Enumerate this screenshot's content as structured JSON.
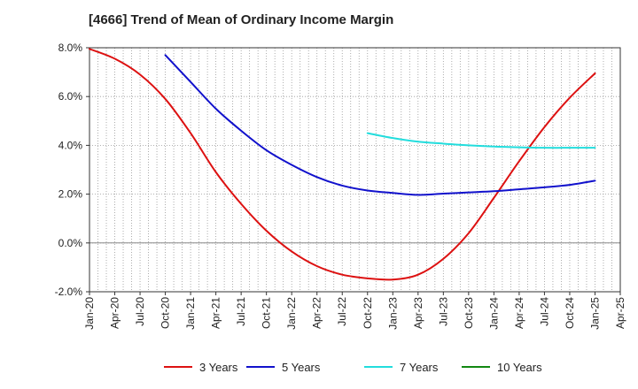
{
  "chart_data": {
    "type": "line",
    "title": "[4666]  Trend of Mean of Ordinary Income Margin",
    "xlabel": "",
    "ylabel": "",
    "x_range": [
      "2020-01",
      "2025-04"
    ],
    "ylim": [
      -2.0,
      8.0
    ],
    "y_ticks": [
      {
        "value": 8,
        "label": "8.0%"
      },
      {
        "value": 6,
        "label": "6.0%"
      },
      {
        "value": 4,
        "label": "4.0%"
      },
      {
        "value": 2,
        "label": "2.0%"
      },
      {
        "value": 0,
        "label": "0.0%"
      },
      {
        "value": -2,
        "label": "-2.0%"
      }
    ],
    "x_ticks": [
      {
        "date": "2020-01",
        "label": "Jan-20"
      },
      {
        "date": "2020-04",
        "label": "Apr-20"
      },
      {
        "date": "2020-07",
        "label": "Jul-20"
      },
      {
        "date": "2020-10",
        "label": "Oct-20"
      },
      {
        "date": "2021-01",
        "label": "Jan-21"
      },
      {
        "date": "2021-04",
        "label": "Apr-21"
      },
      {
        "date": "2021-07",
        "label": "Jul-21"
      },
      {
        "date": "2021-10",
        "label": "Oct-21"
      },
      {
        "date": "2022-01",
        "label": "Jan-22"
      },
      {
        "date": "2022-04",
        "label": "Apr-22"
      },
      {
        "date": "2022-07",
        "label": "Jul-22"
      },
      {
        "date": "2022-10",
        "label": "Oct-22"
      },
      {
        "date": "2023-01",
        "label": "Jan-23"
      },
      {
        "date": "2023-04",
        "label": "Apr-23"
      },
      {
        "date": "2023-07",
        "label": "Jul-23"
      },
      {
        "date": "2023-10",
        "label": "Oct-23"
      },
      {
        "date": "2024-01",
        "label": "Jan-24"
      },
      {
        "date": "2024-04",
        "label": "Apr-24"
      },
      {
        "date": "2024-07",
        "label": "Jul-24"
      },
      {
        "date": "2024-10",
        "label": "Oct-24"
      },
      {
        "date": "2025-01",
        "label": "Jan-25"
      },
      {
        "date": "2025-04",
        "label": "Apr-25"
      }
    ],
    "grid": true,
    "legend_position": "bottom",
    "series": [
      {
        "name": "3 Years",
        "color": "#dd1111",
        "points": [
          [
            "2020-01",
            7.95
          ],
          [
            "2020-04",
            7.55
          ],
          [
            "2020-07",
            6.9
          ],
          [
            "2020-10",
            5.9
          ],
          [
            "2021-01",
            4.5
          ],
          [
            "2021-04",
            2.9
          ],
          [
            "2021-07",
            1.6
          ],
          [
            "2021-10",
            0.5
          ],
          [
            "2022-01",
            -0.35
          ],
          [
            "2022-04",
            -0.95
          ],
          [
            "2022-07",
            -1.3
          ],
          [
            "2022-10",
            -1.45
          ],
          [
            "2023-01",
            -1.5
          ],
          [
            "2023-04",
            -1.3
          ],
          [
            "2023-07",
            -0.65
          ],
          [
            "2023-10",
            0.4
          ],
          [
            "2024-01",
            1.85
          ],
          [
            "2024-04",
            3.35
          ],
          [
            "2024-07",
            4.75
          ],
          [
            "2024-10",
            5.95
          ],
          [
            "2025-01",
            6.95
          ]
        ]
      },
      {
        "name": "5 Years",
        "color": "#1111cc",
        "points": [
          [
            "2020-10",
            7.7
          ],
          [
            "2021-01",
            6.6
          ],
          [
            "2021-04",
            5.5
          ],
          [
            "2021-07",
            4.6
          ],
          [
            "2021-10",
            3.8
          ],
          [
            "2022-01",
            3.2
          ],
          [
            "2022-04",
            2.7
          ],
          [
            "2022-07",
            2.35
          ],
          [
            "2022-10",
            2.15
          ],
          [
            "2023-01",
            2.05
          ],
          [
            "2023-04",
            1.97
          ],
          [
            "2023-07",
            2.02
          ],
          [
            "2023-10",
            2.07
          ],
          [
            "2024-01",
            2.12
          ],
          [
            "2024-04",
            2.2
          ],
          [
            "2024-07",
            2.28
          ],
          [
            "2024-10",
            2.38
          ],
          [
            "2025-01",
            2.55
          ]
        ]
      },
      {
        "name": "7 Years",
        "color": "#22dddd",
        "points": [
          [
            "2022-10",
            4.5
          ],
          [
            "2023-01",
            4.3
          ],
          [
            "2023-04",
            4.15
          ],
          [
            "2023-07",
            4.07
          ],
          [
            "2023-10",
            4.0
          ],
          [
            "2024-01",
            3.95
          ],
          [
            "2024-04",
            3.92
          ],
          [
            "2024-07",
            3.9
          ],
          [
            "2024-10",
            3.9
          ],
          [
            "2025-01",
            3.9
          ]
        ]
      },
      {
        "name": "10 Years",
        "color": "#118811",
        "points": []
      }
    ]
  }
}
